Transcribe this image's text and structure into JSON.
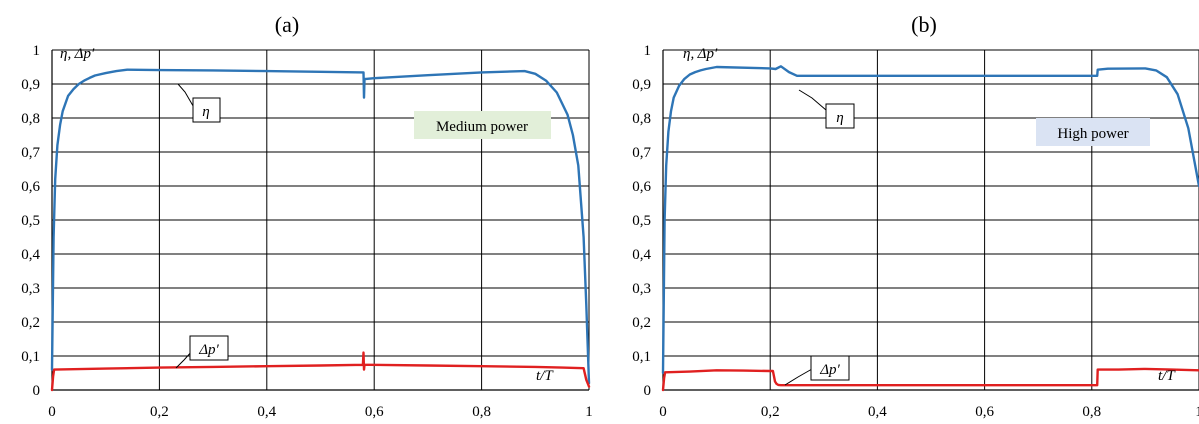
{
  "chart_data": [
    {
      "type": "line",
      "panel_label": "(a)",
      "ylabel": "η, Δp′",
      "xlabel": "t/T",
      "xlim": [
        0,
        1
      ],
      "ylim": [
        0,
        1
      ],
      "xticks": [
        "0",
        "0,2",
        "0,4",
        "0,6",
        "0,8",
        "1"
      ],
      "yticks": [
        "0",
        "0,1",
        "0,2",
        "0,3",
        "0,4",
        "0,5",
        "0,6",
        "0,7",
        "0,8",
        "0,9",
        "1"
      ],
      "grid": true,
      "power_label": "Medium power",
      "power_color": "#e2efd9",
      "series": [
        {
          "name": "η",
          "color": "#2e75b6",
          "x": [
            0,
            0.003,
            0.006,
            0.01,
            0.015,
            0.02,
            0.03,
            0.04,
            0.05,
            0.06,
            0.07,
            0.08,
            0.1,
            0.12,
            0.14,
            0.2,
            0.3,
            0.4,
            0.5,
            0.58,
            0.581,
            0.582,
            0.585,
            0.6,
            0.7,
            0.8,
            0.88,
            0.9,
            0.92,
            0.94,
            0.96,
            0.97,
            0.98,
            0.99,
            0.995,
            1.0
          ],
          "y": [
            0.06,
            0.45,
            0.62,
            0.72,
            0.78,
            0.82,
            0.865,
            0.885,
            0.9,
            0.91,
            0.918,
            0.925,
            0.932,
            0.938,
            0.942,
            0.941,
            0.94,
            0.938,
            0.936,
            0.934,
            0.86,
            0.915,
            0.915,
            0.917,
            0.926,
            0.934,
            0.938,
            0.93,
            0.91,
            0.875,
            0.81,
            0.75,
            0.66,
            0.45,
            0.25,
            0.02
          ]
        },
        {
          "name": "Δp′",
          "color": "#e02020",
          "x": [
            0,
            0.002,
            0.004,
            0.1,
            0.2,
            0.3,
            0.4,
            0.5,
            0.579,
            0.58,
            0.581,
            0.582,
            0.59,
            0.7,
            0.8,
            0.9,
            0.95,
            0.99,
            0.995,
            1.0
          ],
          "y": [
            0.0,
            0.04,
            0.06,
            0.063,
            0.066,
            0.068,
            0.07,
            0.072,
            0.074,
            0.11,
            0.06,
            0.074,
            0.074,
            0.072,
            0.07,
            0.068,
            0.066,
            0.064,
            0.03,
            0.01
          ]
        }
      ]
    },
    {
      "type": "line",
      "panel_label": "(b)",
      "ylabel": "η, Δp′",
      "xlabel": "t/T",
      "xlim": [
        0,
        1
      ],
      "ylim": [
        0,
        1
      ],
      "xticks": [
        "0",
        "0,2",
        "0,4",
        "0,6",
        "0,8",
        "1"
      ],
      "yticks": [
        "0",
        "0,1",
        "0,2",
        "0,3",
        "0,4",
        "0,5",
        "0,6",
        "0,7",
        "0,8",
        "0,9",
        "1"
      ],
      "grid": true,
      "power_label": "High power",
      "power_color": "#dae3f3",
      "series": [
        {
          "name": "η",
          "color": "#2e75b6",
          "x": [
            0,
            0.003,
            0.006,
            0.01,
            0.015,
            0.02,
            0.03,
            0.04,
            0.05,
            0.06,
            0.07,
            0.08,
            0.1,
            0.2,
            0.21,
            0.22,
            0.235,
            0.25,
            0.4,
            0.6,
            0.8,
            0.81,
            0.811,
            0.83,
            0.9,
            0.92,
            0.94,
            0.96,
            0.98,
            1.0
          ],
          "y": [
            0.05,
            0.5,
            0.66,
            0.76,
            0.82,
            0.86,
            0.895,
            0.915,
            0.928,
            0.935,
            0.94,
            0.944,
            0.95,
            0.946,
            0.944,
            0.952,
            0.935,
            0.924,
            0.924,
            0.924,
            0.924,
            0.924,
            0.942,
            0.945,
            0.946,
            0.94,
            0.92,
            0.87,
            0.77,
            0.6
          ]
        },
        {
          "name": "Δp′",
          "color": "#e02020",
          "x": [
            0,
            0.002,
            0.004,
            0.05,
            0.1,
            0.15,
            0.2,
            0.205,
            0.207,
            0.209,
            0.212,
            0.215,
            0.22,
            0.4,
            0.6,
            0.8,
            0.81,
            0.811,
            0.85,
            0.9,
            0.95,
            1.0
          ],
          "y": [
            0.0,
            0.035,
            0.052,
            0.054,
            0.058,
            0.057,
            0.056,
            0.056,
            0.04,
            0.025,
            0.018,
            0.015,
            0.014,
            0.014,
            0.014,
            0.014,
            0.014,
            0.06,
            0.06,
            0.062,
            0.06,
            0.058
          ]
        }
      ]
    }
  ]
}
